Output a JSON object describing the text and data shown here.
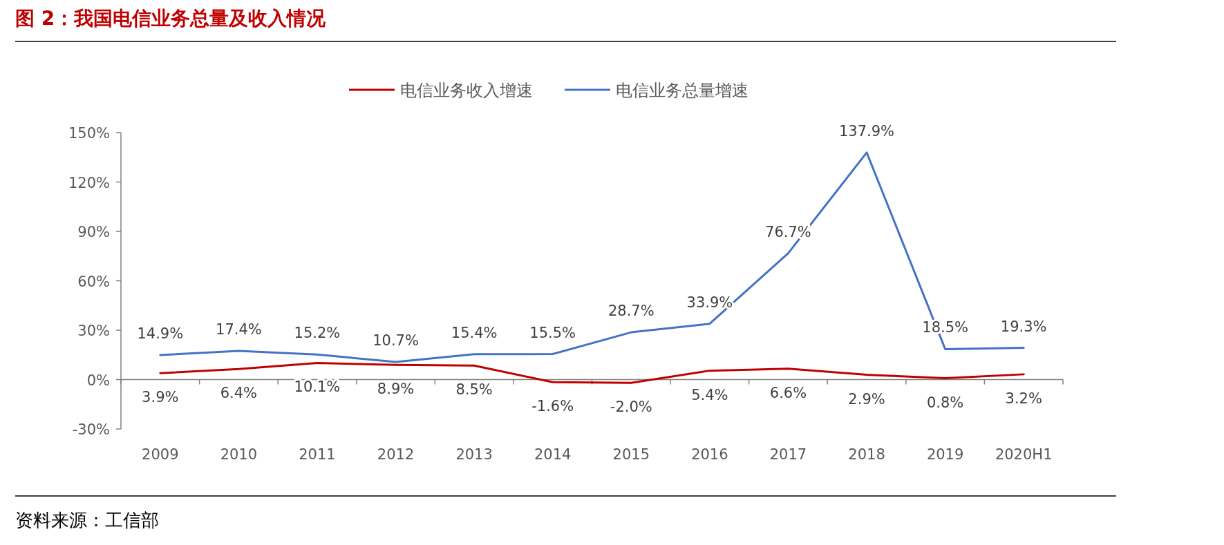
{
  "chart_data": {
    "type": "line",
    "title": "图 2：我国电信业务总量及收入情况",
    "categories": [
      "2009",
      "2010",
      "2011",
      "2012",
      "2013",
      "2014",
      "2015",
      "2016",
      "2017",
      "2018",
      "2019",
      "2020H1"
    ],
    "series": [
      {
        "name": "电信业务收入增速",
        "color": "#c00000",
        "values": [
          3.9,
          6.4,
          10.1,
          8.9,
          8.5,
          -1.6,
          -2.0,
          5.4,
          6.6,
          2.9,
          0.8,
          3.2
        ],
        "value_labels": [
          "3.9%",
          "6.4%",
          "10.1%",
          "8.9%",
          "8.5%",
          "-1.6%",
          "-2.0%",
          "5.4%",
          "6.6%",
          "2.9%",
          "0.8%",
          "3.2%"
        ]
      },
      {
        "name": "电信业务总量增速",
        "color": "#4472c4",
        "values": [
          14.9,
          17.4,
          15.2,
          10.7,
          15.4,
          15.5,
          28.7,
          33.9,
          76.7,
          137.9,
          18.5,
          19.3
        ],
        "value_labels": [
          "14.9%",
          "17.4%",
          "15.2%",
          "10.7%",
          "15.4%",
          "15.5%",
          "28.7%",
          "33.9%",
          "76.7%",
          "137.9%",
          "18.5%",
          "19.3%"
        ]
      }
    ],
    "ylim": [
      -30,
      150
    ],
    "yticks": [
      {
        "value": -30,
        "label": "-30%"
      },
      {
        "value": 0,
        "label": "0%"
      },
      {
        "value": 30,
        "label": "30%"
      },
      {
        "value": 60,
        "label": "60%"
      },
      {
        "value": 90,
        "label": "90%"
      },
      {
        "value": 120,
        "label": "120%"
      },
      {
        "value": 150,
        "label": "150%"
      }
    ],
    "legend": "top",
    "marker": "none",
    "line_style": "solid",
    "annotations": [
      "资料来源：工信部"
    ]
  }
}
